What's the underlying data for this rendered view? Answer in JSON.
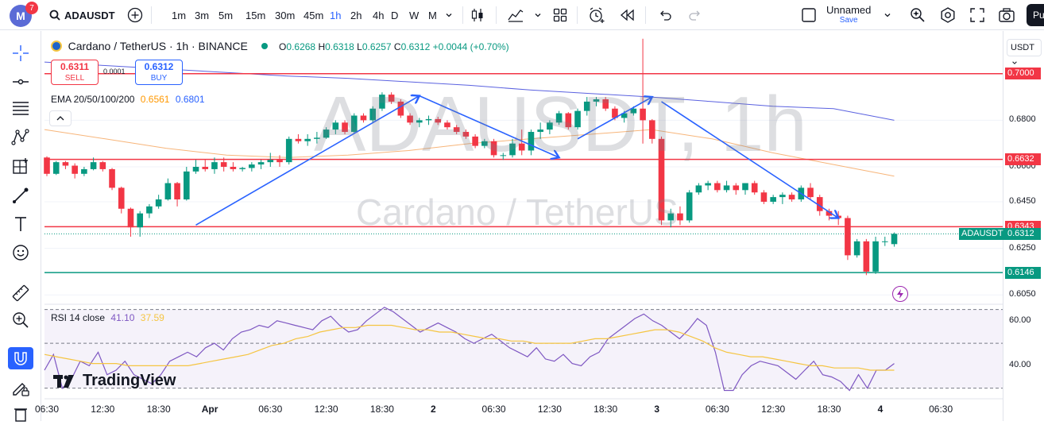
{
  "toolbar": {
    "avatar_letter": "M",
    "notification_count": "7",
    "symbol": "ADAUSDT",
    "intervals": [
      "1m",
      "3m",
      "5m",
      "15m",
      "30m",
      "45m",
      "1h",
      "2h",
      "4h",
      "D",
      "W",
      "M"
    ],
    "active_interval": "1h",
    "layout_name": "Unnamed",
    "save_label": "Save",
    "publish_label": "Pu"
  },
  "legend": {
    "title": "Cardano / TetherUS · 1h · BINANCE",
    "o_label": "O",
    "o": "0.6268",
    "h_label": "H",
    "h": "0.6318",
    "l_label": "L",
    "l": "0.6257",
    "c_label": "C",
    "c": "0.6312",
    "change": "+0.0044 (+0.70%)",
    "sell_price": "0.6311",
    "sell_label": "SELL",
    "spread": "0.0001",
    "buy_price": "0.6312",
    "buy_label": "BUY",
    "ema_label": "EMA 20/50/100/200",
    "ema_val1": "0.6561",
    "ema_val2": "0.6801",
    "rsi_label": "RSI 14 close",
    "rsi_val1": "41.10",
    "rsi_val2": "37.59"
  },
  "watermark": {
    "symbol": "ADAUSDT, 1h",
    "name": "Cardano / TetherUS"
  },
  "currency": "USDT",
  "branding": "TradingView",
  "chart_data": {
    "type": "candlestick",
    "symbol": "ADAUSDT",
    "exchange": "BINANCE",
    "interval": "1h",
    "candles": [
      {
        "o": 0.664,
        "h": 0.6645,
        "l": 0.656,
        "c": 0.657
      },
      {
        "o": 0.657,
        "h": 0.6625,
        "l": 0.6565,
        "c": 0.662
      },
      {
        "o": 0.662,
        "h": 0.6625,
        "l": 0.659,
        "c": 0.6605
      },
      {
        "o": 0.6605,
        "h": 0.6615,
        "l": 0.655,
        "c": 0.657
      },
      {
        "o": 0.657,
        "h": 0.66,
        "l": 0.656,
        "c": 0.659
      },
      {
        "o": 0.659,
        "h": 0.664,
        "l": 0.6585,
        "c": 0.662
      },
      {
        "o": 0.662,
        "h": 0.6625,
        "l": 0.658,
        "c": 0.659
      },
      {
        "o": 0.659,
        "h": 0.6595,
        "l": 0.65,
        "c": 0.651
      },
      {
        "o": 0.651,
        "h": 0.6515,
        "l": 0.64,
        "c": 0.642
      },
      {
        "o": 0.642,
        "h": 0.6425,
        "l": 0.63,
        "c": 0.634
      },
      {
        "o": 0.634,
        "h": 0.641,
        "l": 0.63,
        "c": 0.64
      },
      {
        "o": 0.64,
        "h": 0.644,
        "l": 0.638,
        "c": 0.643
      },
      {
        "o": 0.643,
        "h": 0.648,
        "l": 0.642,
        "c": 0.646
      },
      {
        "o": 0.646,
        "h": 0.655,
        "l": 0.6455,
        "c": 0.653
      },
      {
        "o": 0.653,
        "h": 0.6535,
        "l": 0.643,
        "c": 0.646
      },
      {
        "o": 0.646,
        "h": 0.66,
        "l": 0.6455,
        "c": 0.658
      },
      {
        "o": 0.658,
        "h": 0.663,
        "l": 0.657,
        "c": 0.66
      },
      {
        "o": 0.66,
        "h": 0.663,
        "l": 0.658,
        "c": 0.659
      },
      {
        "o": 0.659,
        "h": 0.664,
        "l": 0.657,
        "c": 0.662
      },
      {
        "o": 0.662,
        "h": 0.664,
        "l": 0.658,
        "c": 0.66
      },
      {
        "o": 0.66,
        "h": 0.662,
        "l": 0.658,
        "c": 0.659
      },
      {
        "o": 0.659,
        "h": 0.66,
        "l": 0.658,
        "c": 0.6595
      },
      {
        "o": 0.6595,
        "h": 0.662,
        "l": 0.658,
        "c": 0.661
      },
      {
        "o": 0.661,
        "h": 0.663,
        "l": 0.659,
        "c": 0.662
      },
      {
        "o": 0.662,
        "h": 0.666,
        "l": 0.66,
        "c": 0.663
      },
      {
        "o": 0.663,
        "h": 0.665,
        "l": 0.66,
        "c": 0.662
      },
      {
        "o": 0.662,
        "h": 0.673,
        "l": 0.661,
        "c": 0.672
      },
      {
        "o": 0.672,
        "h": 0.674,
        "l": 0.67,
        "c": 0.671
      },
      {
        "o": 0.671,
        "h": 0.674,
        "l": 0.669,
        "c": 0.672
      },
      {
        "o": 0.672,
        "h": 0.675,
        "l": 0.67,
        "c": 0.6725
      },
      {
        "o": 0.6725,
        "h": 0.677,
        "l": 0.672,
        "c": 0.676
      },
      {
        "o": 0.676,
        "h": 0.68,
        "l": 0.674,
        "c": 0.679
      },
      {
        "o": 0.679,
        "h": 0.68,
        "l": 0.674,
        "c": 0.675
      },
      {
        "o": 0.675,
        "h": 0.683,
        "l": 0.6745,
        "c": 0.682
      },
      {
        "o": 0.682,
        "h": 0.683,
        "l": 0.679,
        "c": 0.68
      },
      {
        "o": 0.68,
        "h": 0.686,
        "l": 0.679,
        "c": 0.685
      },
      {
        "o": 0.685,
        "h": 0.692,
        "l": 0.684,
        "c": 0.691
      },
      {
        "o": 0.691,
        "h": 0.692,
        "l": 0.687,
        "c": 0.688
      },
      {
        "o": 0.688,
        "h": 0.689,
        "l": 0.681,
        "c": 0.682
      },
      {
        "o": 0.682,
        "h": 0.683,
        "l": 0.678,
        "c": 0.679
      },
      {
        "o": 0.679,
        "h": 0.681,
        "l": 0.677,
        "c": 0.68
      },
      {
        "o": 0.68,
        "h": 0.682,
        "l": 0.678,
        "c": 0.6805
      },
      {
        "o": 0.6805,
        "h": 0.6815,
        "l": 0.678,
        "c": 0.679
      },
      {
        "o": 0.679,
        "h": 0.68,
        "l": 0.676,
        "c": 0.677
      },
      {
        "o": 0.677,
        "h": 0.678,
        "l": 0.674,
        "c": 0.675
      },
      {
        "o": 0.675,
        "h": 0.676,
        "l": 0.672,
        "c": 0.673
      },
      {
        "o": 0.673,
        "h": 0.674,
        "l": 0.668,
        "c": 0.669
      },
      {
        "o": 0.669,
        "h": 0.672,
        "l": 0.668,
        "c": 0.671
      },
      {
        "o": 0.671,
        "h": 0.672,
        "l": 0.664,
        "c": 0.665
      },
      {
        "o": 0.665,
        "h": 0.666,
        "l": 0.663,
        "c": 0.665
      },
      {
        "o": 0.665,
        "h": 0.672,
        "l": 0.664,
        "c": 0.67
      },
      {
        "o": 0.67,
        "h": 0.676,
        "l": 0.665,
        "c": 0.667
      },
      {
        "o": 0.667,
        "h": 0.676,
        "l": 0.665,
        "c": 0.675
      },
      {
        "o": 0.675,
        "h": 0.679,
        "l": 0.672,
        "c": 0.676
      },
      {
        "o": 0.676,
        "h": 0.68,
        "l": 0.674,
        "c": 0.679
      },
      {
        "o": 0.679,
        "h": 0.684,
        "l": 0.678,
        "c": 0.683
      },
      {
        "o": 0.683,
        "h": 0.6835,
        "l": 0.676,
        "c": 0.677
      },
      {
        "o": 0.677,
        "h": 0.685,
        "l": 0.676,
        "c": 0.684
      },
      {
        "o": 0.684,
        "h": 0.69,
        "l": 0.682,
        "c": 0.688
      },
      {
        "o": 0.688,
        "h": 0.69,
        "l": 0.686,
        "c": 0.689
      },
      {
        "o": 0.689,
        "h": 0.69,
        "l": 0.684,
        "c": 0.685
      },
      {
        "o": 0.685,
        "h": 0.686,
        "l": 0.68,
        "c": 0.681
      },
      {
        "o": 0.681,
        "h": 0.684,
        "l": 0.679,
        "c": 0.683
      },
      {
        "o": 0.683,
        "h": 0.686,
        "l": 0.682,
        "c": 0.685
      },
      {
        "o": 0.685,
        "h": 0.715,
        "l": 0.67,
        "c": 0.68
      },
      {
        "o": 0.68,
        "h": 0.6805,
        "l": 0.67,
        "c": 0.672
      },
      {
        "o": 0.672,
        "h": 0.673,
        "l": 0.635,
        "c": 0.637
      },
      {
        "o": 0.637,
        "h": 0.642,
        "l": 0.634,
        "c": 0.64
      },
      {
        "o": 0.64,
        "h": 0.643,
        "l": 0.635,
        "c": 0.637
      },
      {
        "o": 0.637,
        "h": 0.65,
        "l": 0.636,
        "c": 0.649
      },
      {
        "o": 0.649,
        "h": 0.653,
        "l": 0.648,
        "c": 0.652
      },
      {
        "o": 0.652,
        "h": 0.654,
        "l": 0.65,
        "c": 0.653
      },
      {
        "o": 0.653,
        "h": 0.654,
        "l": 0.649,
        "c": 0.65
      },
      {
        "o": 0.65,
        "h": 0.654,
        "l": 0.649,
        "c": 0.652
      },
      {
        "o": 0.652,
        "h": 0.653,
        "l": 0.648,
        "c": 0.65
      },
      {
        "o": 0.65,
        "h": 0.653,
        "l": 0.648,
        "c": 0.653
      },
      {
        "o": 0.653,
        "h": 0.654,
        "l": 0.648,
        "c": 0.649
      },
      {
        "o": 0.649,
        "h": 0.65,
        "l": 0.644,
        "c": 0.645
      },
      {
        "o": 0.645,
        "h": 0.648,
        "l": 0.644,
        "c": 0.647
      },
      {
        "o": 0.647,
        "h": 0.649,
        "l": 0.644,
        "c": 0.648
      },
      {
        "o": 0.648,
        "h": 0.649,
        "l": 0.645,
        "c": 0.646
      },
      {
        "o": 0.646,
        "h": 0.652,
        "l": 0.645,
        "c": 0.651
      },
      {
        "o": 0.651,
        "h": 0.653,
        "l": 0.646,
        "c": 0.647
      },
      {
        "o": 0.647,
        "h": 0.648,
        "l": 0.639,
        "c": 0.641
      },
      {
        "o": 0.641,
        "h": 0.642,
        "l": 0.637,
        "c": 0.639
      },
      {
        "o": 0.639,
        "h": 0.641,
        "l": 0.635,
        "c": 0.638
      },
      {
        "o": 0.638,
        "h": 0.639,
        "l": 0.62,
        "c": 0.622
      },
      {
        "o": 0.622,
        "h": 0.629,
        "l": 0.621,
        "c": 0.628
      },
      {
        "o": 0.628,
        "h": 0.629,
        "l": 0.6135,
        "c": 0.615
      },
      {
        "o": 0.615,
        "h": 0.63,
        "l": 0.614,
        "c": 0.628
      },
      {
        "o": 0.628,
        "h": 0.63,
        "l": 0.626,
        "c": 0.628
      },
      {
        "o": 0.6268,
        "h": 0.6318,
        "l": 0.6257,
        "c": 0.6312
      }
    ],
    "horizontal_levels": [
      {
        "price": 0.7,
        "label": "0.7000",
        "color": "#f23645"
      },
      {
        "price": 0.6632,
        "label": "0.6632",
        "color": "#f23645"
      },
      {
        "price": 0.6343,
        "label": "0.6343",
        "color": "#f23645"
      },
      {
        "price": 0.6146,
        "label": "0.6146",
        "color": "#089981"
      }
    ],
    "last_price": {
      "price": 0.6312,
      "label": "0.6312",
      "symbol_label": "ADAUSDT"
    },
    "y_ticks": [
      0.68,
      0.66,
      0.645,
      0.625,
      0.605
    ],
    "y_tick_labels": [
      "0.6800",
      "0.6600",
      "0.6450",
      "0.6250",
      "0.6050"
    ],
    "ylim": [
      0.602,
      0.718
    ],
    "x_tick_labels": [
      "06:30",
      "12:30",
      "18:30",
      "Apr",
      "06:30",
      "12:30",
      "18:30",
      "2",
      "06:30",
      "12:30",
      "18:30",
      "3",
      "06:30",
      "12:30",
      "18:30",
      "4",
      "06:30"
    ],
    "x_tick_index": [
      0,
      6,
      12,
      17.5,
      24,
      30,
      36,
      41.5,
      48,
      54,
      60,
      65.5,
      72,
      78,
      84,
      89.5,
      96
    ],
    "ema_slow": [
      0.705,
      0.7035,
      0.702,
      0.7005,
      0.699,
      0.698,
      0.6965,
      0.695,
      0.693,
      0.6915,
      0.69,
      0.688,
      0.686,
      0.685,
      0.68
    ],
    "ema_fast": [
      0.676,
      0.672,
      0.668,
      0.665,
      0.664,
      0.665,
      0.667,
      0.67,
      0.672,
      0.674,
      0.676,
      0.672,
      0.666,
      0.661,
      0.656
    ],
    "rsi_ticks": [
      60.0,
      40.0
    ],
    "rsi_ylim": [
      26,
      67
    ],
    "rsi": [
      38,
      45,
      30,
      34,
      42,
      40,
      46,
      36,
      38,
      42,
      36,
      34,
      32,
      36,
      42,
      44,
      46,
      44,
      48,
      50,
      47,
      52,
      55,
      56,
      58,
      57,
      60,
      59,
      58,
      57,
      56,
      60,
      62,
      58,
      55,
      56,
      60,
      63,
      66,
      64,
      61,
      58,
      55,
      57,
      59,
      57,
      55,
      52,
      50,
      52,
      54,
      51,
      48,
      46,
      44,
      48,
      43,
      42,
      45,
      41,
      40,
      44,
      46,
      52,
      55,
      58,
      61,
      63,
      60,
      58,
      55,
      52,
      56,
      61,
      58,
      46,
      29,
      29,
      36,
      40,
      42,
      41,
      40,
      37,
      34,
      38,
      42,
      36,
      35,
      33,
      29,
      36,
      30,
      38,
      38,
      41
    ],
    "rsi_ma": [
      45,
      44,
      43,
      42,
      41,
      41,
      41,
      40,
      40,
      40,
      40,
      40,
      40,
      41,
      42,
      43,
      44,
      45,
      47,
      49,
      50,
      52,
      53,
      55,
      56,
      57,
      57,
      58,
      58,
      58,
      57,
      56,
      56,
      55,
      55,
      54,
      53,
      52,
      52,
      51,
      51,
      50,
      50,
      50,
      50,
      51,
      52,
      52,
      53,
      54,
      55,
      56,
      56,
      55,
      53,
      51,
      48,
      46,
      45,
      44,
      44,
      43,
      42,
      41,
      40,
      40,
      39,
      39,
      39,
      38,
      38,
      38
    ]
  }
}
